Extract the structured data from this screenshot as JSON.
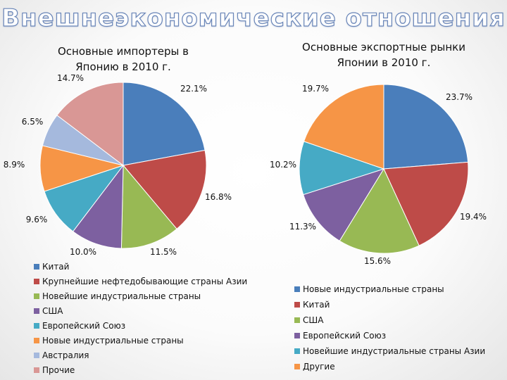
{
  "slide": {
    "title": "Внешнеэкономические отношения"
  },
  "chart_data": [
    {
      "type": "pie",
      "title": "Основные импортеры в Японию в 2010 г.",
      "unit": "%",
      "slices": [
        {
          "label": "Китай",
          "value": 22.1,
          "value_label": "22.1%",
          "color": "#4a7ebb"
        },
        {
          "label": "Крупнейшие нефтедобывающие страны Азии",
          "value": 16.8,
          "value_label": "16.8%",
          "color": "#be4b48"
        },
        {
          "label": "Новейшие индустриальные страны",
          "value": 11.5,
          "value_label": "11.5%",
          "color": "#98b954"
        },
        {
          "label": "США",
          "value": 10.0,
          "value_label": "10.0%",
          "color": "#7d60a0"
        },
        {
          "label": "Европейский Союз",
          "value": 9.6,
          "value_label": "9.6%",
          "color": "#46aac5"
        },
        {
          "label": "Новые индустриальные страны",
          "value": 8.9,
          "value_label": "8.9%",
          "color": "#f69546"
        },
        {
          "label": "Австралия",
          "value": 6.5,
          "value_label": "6.5%",
          "color": "#a5b9dd"
        },
        {
          "label": "Прочие",
          "value": 14.7,
          "value_label": "14.7%",
          "color": "#d99795"
        }
      ],
      "legend_position": "bottom-left"
    },
    {
      "type": "pie",
      "title": "Основные экспортные рынки Японии в 2010 г.",
      "unit": "%",
      "slices": [
        {
          "label": "Новые индустриальные страны",
          "value": 23.7,
          "value_label": "23.7%",
          "color": "#4a7ebb"
        },
        {
          "label": "Китай",
          "value": 19.4,
          "value_label": "19.4%",
          "color": "#be4b48"
        },
        {
          "label": "США",
          "value": 15.6,
          "value_label": "15.6%",
          "color": "#98b954"
        },
        {
          "label": "Европейский Союз",
          "value": 11.3,
          "value_label": "11.3%",
          "color": "#7d60a0"
        },
        {
          "label": "Новейшие индустриальные страны Азии",
          "value": 10.2,
          "value_label": "10.2%",
          "color": "#46aac5"
        },
        {
          "label": "Другие",
          "value": 19.7,
          "value_label": "19.7%",
          "color": "#f69546"
        }
      ],
      "legend_position": "bottom-right"
    }
  ]
}
